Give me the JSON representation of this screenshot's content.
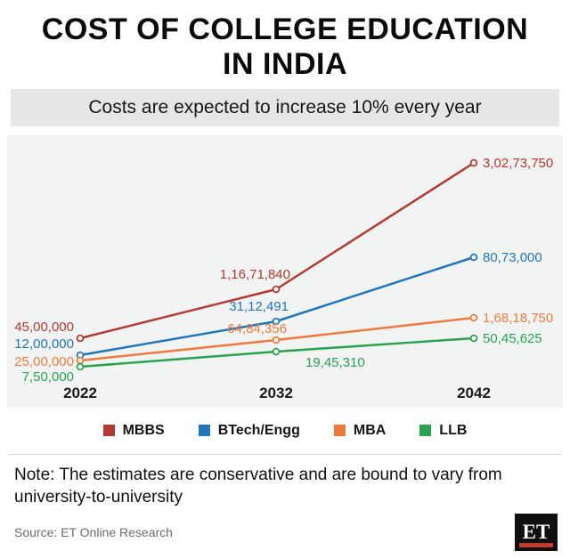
{
  "title": {
    "line1": "COST OF COLLEGE EDUCATION",
    "line2": "IN INDIA"
  },
  "subtitle": "Costs are expected to increase 10% every year",
  "note": "Note: The estimates are conservative and are bound to vary from university-to-university",
  "source": "Source: ET Online Research",
  "logo": {
    "text": "ET"
  },
  "chart_data": {
    "type": "line",
    "title": "",
    "xlabel": "",
    "ylabel": "",
    "categories": [
      "2022",
      "2032",
      "2042"
    ],
    "x": [
      2022,
      2032,
      2042
    ],
    "grid": false,
    "legend_position": "bottom",
    "series": [
      {
        "name": "MBBS",
        "color": "#b23a30",
        "values": [
          4500000,
          11671840,
          30273750
        ],
        "labels": [
          "45,00,000",
          "1,16,71,840",
          "3,02,73,750"
        ]
      },
      {
        "name": "BTech/Engg",
        "color": "#2176bd",
        "values": [
          1200000,
          3112491,
          8073000
        ],
        "labels": [
          "12,00,000",
          "31,12,491",
          "80,73,000"
        ]
      },
      {
        "name": "MBA",
        "color": "#ee7b3c",
        "values": [
          2500000,
          6484356,
          16818750
        ],
        "labels": [
          "25,00,000",
          "64,84,356",
          "1,68,18,750"
        ]
      },
      {
        "name": "LLB",
        "color": "#28a351",
        "values": [
          750000,
          1945310,
          5045625
        ],
        "labels": [
          "7,50,000",
          "19,45,310",
          "50,45,625"
        ]
      }
    ]
  }
}
